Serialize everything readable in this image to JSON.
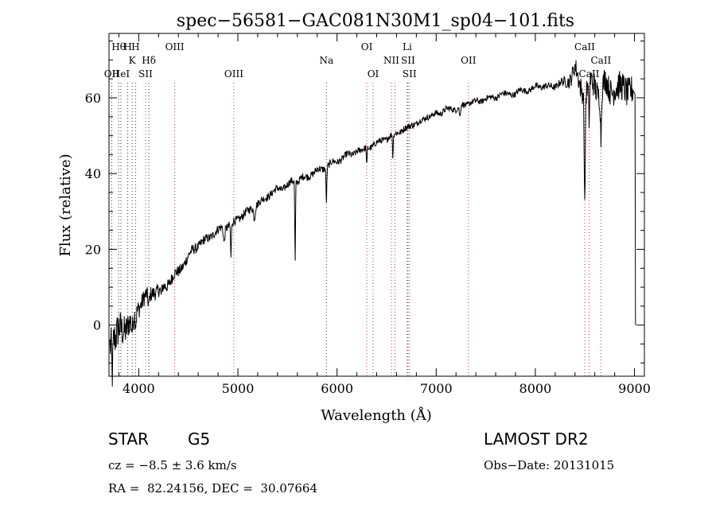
{
  "chart_data": {
    "type": "line",
    "title": "spec−56581−GAC081N30M1_sp04−101.fits",
    "xlabel": "Wavelength (Å)",
    "ylabel": "Flux (relative)",
    "xlim": [
      3700,
      9100
    ],
    "ylim": [
      -13.5,
      77
    ],
    "x_ticks": [
      4000,
      5000,
      6000,
      7000,
      8000,
      9000
    ],
    "x_tick_labels": [
      "4000",
      "5000",
      "6000",
      "7000",
      "8000",
      "9000"
    ],
    "y_ticks": [
      0,
      20,
      40,
      60
    ],
    "y_tick_labels": [
      "0",
      "20",
      "40",
      "60"
    ],
    "grid": false,
    "line_color": "#000000",
    "marker_colors": {
      "black": "#333333",
      "red": "#cc3333"
    },
    "series": [
      {
        "x": [
          3710,
          3740,
          3770,
          3800,
          3840,
          3880,
          3920,
          3960,
          4000,
          4050,
          4100,
          4150,
          4200,
          4250,
          4300,
          4350,
          4400,
          4450,
          4500,
          4550,
          4600,
          4650,
          4700,
          4750,
          4800,
          4850,
          4900,
          4950,
          5000,
          5050,
          5100,
          5150,
          5200,
          5250,
          5300,
          5350,
          5400,
          5450,
          5500,
          5550,
          5600,
          5650,
          5700,
          5750,
          5800,
          5850,
          5900,
          5950,
          6000,
          6050,
          6100,
          6150,
          6200,
          6250,
          6300,
          6350,
          6400,
          6450,
          6500,
          6550,
          6600,
          6650,
          6700,
          6750,
          6800,
          6850,
          6900,
          6950,
          7000,
          7050,
          7100,
          7150,
          7200,
          7250,
          7300,
          7350,
          7400,
          7450,
          7500,
          7550,
          7600,
          7650,
          7700,
          7750,
          7800,
          7850,
          7900,
          7950,
          8000,
          8050,
          8100,
          8150,
          8200,
          8250,
          8300,
          8350,
          8400,
          8450,
          8500,
          8550,
          8600,
          8650,
          8700,
          8750,
          8800,
          8850,
          8900,
          8950,
          8990
        ],
        "y": [
          -4,
          -3,
          -4,
          -2,
          -1,
          0,
          1,
          3,
          5,
          7,
          8,
          9,
          9,
          10,
          11,
          13,
          14,
          16,
          18,
          20,
          21,
          22,
          23,
          24,
          25,
          26,
          26,
          27,
          28,
          29,
          30,
          31,
          32,
          33,
          34,
          35,
          36,
          36,
          37,
          38,
          38,
          39,
          39,
          40,
          41,
          41,
          42,
          43,
          43,
          44,
          45,
          45,
          46,
          46,
          47,
          47,
          48,
          49,
          49,
          50,
          51,
          51,
          52,
          53,
          53,
          54,
          55,
          55,
          56,
          56,
          57,
          57,
          57,
          58,
          58,
          59,
          59,
          59,
          60,
          60,
          60,
          61,
          61,
          61,
          61,
          62,
          62,
          62,
          63,
          63,
          63,
          63,
          63,
          64,
          64,
          65,
          68,
          63,
          61,
          64,
          63,
          61,
          64,
          62,
          63,
          62,
          63,
          62,
          61
        ],
        "noise_amplitude": [
          5.5,
          5.5,
          5.0,
          5.0,
          4.5,
          4.0,
          3.5,
          3.0,
          2.6,
          2.4,
          2.2,
          2.0,
          1.9,
          1.8,
          1.7,
          1.6,
          1.5,
          1.5,
          1.4,
          1.4,
          1.3,
          1.3,
          1.2,
          1.2,
          1.2,
          1.2,
          1.2,
          1.2,
          1.1,
          1.1,
          1.1,
          1.1,
          1.1,
          1.0,
          1.0,
          1.0,
          1.0,
          1.0,
          1.0,
          1.0,
          1.0,
          1.0,
          1.0,
          1.0,
          1.0,
          1.0,
          1.0,
          0.9,
          0.9,
          0.9,
          0.9,
          0.9,
          0.9,
          0.9,
          0.9,
          0.9,
          0.9,
          0.9,
          0.9,
          0.9,
          0.9,
          0.9,
          0.9,
          0.9,
          0.9,
          0.8,
          0.8,
          0.8,
          0.8,
          0.8,
          0.8,
          0.8,
          0.8,
          0.8,
          0.8,
          0.8,
          0.8,
          0.8,
          0.8,
          0.8,
          0.8,
          0.8,
          0.8,
          0.8,
          0.8,
          0.8,
          0.8,
          0.8,
          0.9,
          0.9,
          0.9,
          0.9,
          0.9,
          1.0,
          1.5,
          2.0,
          2.5,
          3.0,
          3.0,
          3.5,
          3.5,
          3.5,
          3.5,
          3.5,
          4.0,
          4.0,
          4.0,
          4.0,
          4.0
        ],
        "absorption_dips": [
          {
            "x": 3734,
            "depth": 8,
            "width": 8
          },
          {
            "x": 3934,
            "depth": 4,
            "width": 12
          },
          {
            "x": 3969,
            "depth": 3,
            "width": 10
          },
          {
            "x": 4101,
            "depth": 3,
            "width": 12
          },
          {
            "x": 4226,
            "depth": 2,
            "width": 10
          },
          {
            "x": 4861,
            "depth": 4,
            "width": 10
          },
          {
            "x": 4930,
            "depth": 9,
            "width": 6
          },
          {
            "x": 5167,
            "depth": 3,
            "width": 10
          },
          {
            "x": 5577,
            "depth": 22,
            "width": 5
          },
          {
            "x": 5893,
            "depth": 9,
            "width": 6
          },
          {
            "x": 6300,
            "depth": 5,
            "width": 5
          },
          {
            "x": 6563,
            "depth": 6,
            "width": 5
          },
          {
            "x": 7240,
            "depth": 3,
            "width": 8
          },
          {
            "x": 8498,
            "depth": 30,
            "width": 7
          },
          {
            "x": 8542,
            "depth": 10,
            "width": 7
          },
          {
            "x": 8662,
            "depth": 12,
            "width": 7
          }
        ],
        "end_drop": {
          "x": [
            9005,
            9010
          ],
          "y": [
            61,
            0
          ]
        }
      }
    ],
    "line_markers": [
      {
        "x": 3727,
        "color": "black",
        "label": "OII",
        "row": 3
      },
      {
        "x": 3797,
        "color": "black",
        "label": "Hθ",
        "row": 1
      },
      {
        "x": 3820,
        "color": "black",
        "label": "HeI",
        "row": 3
      },
      {
        "x": 3889,
        "color": "black",
        "label": "H",
        "row": 1
      },
      {
        "x": 3934,
        "color": "black",
        "label": "K",
        "row": 2
      },
      {
        "x": 3968,
        "color": "black",
        "label": "H",
        "row": 1
      },
      {
        "x": 4069,
        "color": "red",
        "label": "SII",
        "row": 3
      },
      {
        "x": 4102,
        "color": "black",
        "label": "Hδ",
        "row": 2
      },
      {
        "x": 4363,
        "color": "red",
        "label": "OIII",
        "row": 1
      },
      {
        "x": 4959,
        "color": "red",
        "label": "OIII",
        "row": 3
      },
      {
        "x": 5893,
        "color": "black",
        "label": "Na",
        "row": 2
      },
      {
        "x": 6300,
        "color": "red",
        "label": "OI",
        "row": 1
      },
      {
        "x": 6364,
        "color": "red",
        "label": "OI",
        "row": 3
      },
      {
        "x": 6548,
        "color": "red",
        "label": "NII",
        "row": 2
      },
      {
        "x": 6583,
        "color": "red",
        "label": "",
        "row": 0
      },
      {
        "x": 6708,
        "color": "black",
        "label": "Li",
        "row": 1
      },
      {
        "x": 6716,
        "color": "red",
        "label": "SII",
        "row": 2
      },
      {
        "x": 6731,
        "color": "red",
        "label": "SII",
        "row": 3
      },
      {
        "x": 7325,
        "color": "red",
        "label": "OII",
        "row": 2
      },
      {
        "x": 8498,
        "color": "red",
        "label": "CaII",
        "row": 1
      },
      {
        "x": 8542,
        "color": "red",
        "label": "CaII",
        "row": 3
      },
      {
        "x": 8662,
        "color": "red",
        "label": "CaII",
        "row": 2
      }
    ]
  },
  "info": {
    "class": "STAR",
    "subclass": "G5",
    "survey": "LAMOST DR2",
    "cz": "cz = −8.5 ± 3.6 km/s",
    "obs_date": "Obs−Date: 20131015",
    "coords": "RA =  82.24156, DEC =  30.07664"
  }
}
